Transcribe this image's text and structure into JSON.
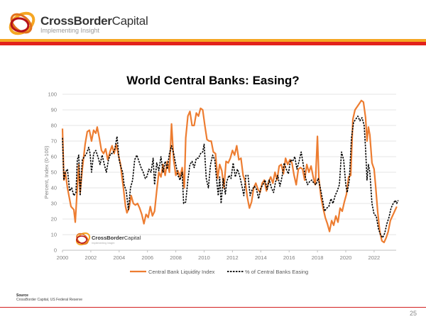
{
  "header": {
    "brand_bold": "CrossBorder",
    "brand_light": "Capital",
    "tagline": "Implementing Insight",
    "colors": {
      "orange": "#f5a623",
      "red": "#e2211c"
    }
  },
  "slide": {
    "title": "World Central Banks: Easing?",
    "watermark_brand_bold": "CrossBorder",
    "watermark_brand_light": "Capital",
    "watermark_tagline": "Implementing Insight",
    "source_label": "Source",
    "source_text": "CrossBorder Capital, US Federal Reserve",
    "page_number": "25"
  },
  "chart_data": {
    "type": "line",
    "title": "World Central Banks: Easing?",
    "xlabel": "",
    "ylabel": "Percent, Index (0-100)",
    "xlim": [
      2000,
      2023.8
    ],
    "ylim": [
      0,
      100
    ],
    "grid": true,
    "legend_position": "bottom",
    "x_ticks": [
      "2000",
      "2002",
      "2004",
      "2006",
      "2008",
      "2010",
      "2012",
      "2014",
      "2016",
      "2018",
      "2020",
      "2022"
    ],
    "y_ticks": [
      "0",
      "10",
      "20",
      "30",
      "40",
      "50",
      "60",
      "70",
      "80",
      "90",
      "100"
    ],
    "series": [
      {
        "name": "Central Bank Liquidity Index",
        "color": "#ed7d31",
        "style": "solid",
        "x": [
          2000.0,
          2000.1,
          2000.2,
          2000.35,
          2000.6,
          2000.8,
          2000.9,
          2001.05,
          2001.15,
          2001.25,
          2001.4,
          2001.6,
          2001.75,
          2001.9,
          2002.05,
          2002.2,
          2002.35,
          2002.45,
          2002.6,
          2002.75,
          2002.9,
          2003.05,
          2003.2,
          2003.35,
          2003.5,
          2003.65,
          2003.8,
          2003.95,
          2004.1,
          2004.2,
          2004.3,
          2004.45,
          2004.55,
          2004.7,
          2004.85,
          2005.0,
          2005.15,
          2005.3,
          2005.45,
          2005.6,
          2005.75,
          2005.9,
          2006.05,
          2006.2,
          2006.35,
          2006.5,
          2006.65,
          2006.8,
          2006.95,
          2007.1,
          2007.25,
          2007.4,
          2007.55,
          2007.7,
          2007.85,
          2008.0,
          2008.15,
          2008.3,
          2008.45,
          2008.6,
          2008.7,
          2008.85,
          2009.0,
          2009.15,
          2009.3,
          2009.45,
          2009.6,
          2009.75,
          2009.9,
          2010.05,
          2010.2,
          2010.35,
          2010.5,
          2010.65,
          2010.8,
          2010.95,
          2011.1,
          2011.25,
          2011.4,
          2011.55,
          2011.7,
          2011.85,
          2012.0,
          2012.15,
          2012.3,
          2012.45,
          2012.6,
          2012.75,
          2012.9,
          2013.05,
          2013.2,
          2013.35,
          2013.5,
          2013.65,
          2013.8,
          2013.95,
          2014.1,
          2014.25,
          2014.4,
          2014.55,
          2014.7,
          2014.85,
          2015.0,
          2015.15,
          2015.3,
          2015.45,
          2015.6,
          2015.75,
          2015.9,
          2016.05,
          2016.2,
          2016.35,
          2016.5,
          2016.65,
          2016.8,
          2016.95,
          2017.1,
          2017.25,
          2017.4,
          2017.55,
          2017.7,
          2017.85,
          2018.0,
          2018.1,
          2018.25,
          2018.4,
          2018.55,
          2018.7,
          2018.85,
          2019.0,
          2019.15,
          2019.3,
          2019.45,
          2019.6,
          2019.75,
          2019.9,
          2020.05,
          2020.2,
          2020.35,
          2020.5,
          2020.65,
          2020.8,
          2020.95,
          2021.1,
          2021.25,
          2021.4,
          2021.5,
          2021.6,
          2021.7,
          2021.85,
          2022.0,
          2022.1,
          2022.25,
          2022.4,
          2022.55,
          2022.7,
          2022.85,
          2023.0,
          2023.15,
          2023.3,
          2023.45,
          2023.6
        ],
        "values": [
          78,
          45,
          50,
          40,
          28,
          26,
          18,
          40,
          55,
          37,
          52,
          68,
          76,
          77,
          70,
          77,
          75,
          79,
          72,
          64,
          62,
          65,
          58,
          63,
          67,
          62,
          68,
          61,
          55,
          47,
          40,
          28,
          24,
          27,
          35,
          30,
          29,
          30,
          27,
          23,
          17,
          23,
          21,
          28,
          22,
          25,
          38,
          50,
          47,
          55,
          48,
          57,
          50,
          81,
          58,
          48,
          51,
          47,
          53,
          40,
          72,
          86,
          89,
          80,
          80,
          88,
          86,
          91,
          90,
          80,
          71,
          70,
          70,
          63,
          62,
          46,
          55,
          51,
          40,
          57,
          56,
          59,
          64,
          61,
          67,
          58,
          59,
          48,
          44,
          34,
          27,
          31,
          40,
          43,
          39,
          37,
          43,
          45,
          38,
          44,
          47,
          43,
          50,
          45,
          54,
          55,
          49,
          59,
          55,
          58,
          56,
          48,
          42,
          52,
          53,
          52,
          45,
          55,
          50,
          54,
          47,
          42,
          73,
          46,
          34,
          27,
          21,
          17,
          12,
          19,
          16,
          22,
          18,
          27,
          25,
          31,
          36,
          47,
          48,
          84,
          90,
          92,
          94,
          96,
          95,
          85,
          70,
          79,
          74,
          56,
          52,
          42,
          25,
          12,
          6,
          5,
          8,
          12,
          19,
          22,
          25,
          28
        ]
      },
      {
        "name": "% of Central Banks Easing",
        "color": "#000000",
        "style": "dashed",
        "x": [
          2000.0,
          2000.1,
          2000.2,
          2000.35,
          2000.5,
          2000.65,
          2000.8,
          2000.95,
          2001.05,
          2001.15,
          2001.25,
          2001.4,
          2001.55,
          2001.7,
          2001.85,
          2001.95,
          2002.05,
          2002.2,
          2002.35,
          2002.5,
          2002.65,
          2002.8,
          2002.95,
          2003.1,
          2003.25,
          2003.4,
          2003.55,
          2003.7,
          2003.85,
          2004.0,
          2004.1,
          2004.25,
          2004.35,
          2004.5,
          2004.65,
          2004.8,
          2004.95,
          2005.1,
          2005.25,
          2005.4,
          2005.55,
          2005.7,
          2005.85,
          2005.95,
          2006.1,
          2006.25,
          2006.4,
          2006.5,
          2006.65,
          2006.8,
          2006.95,
          2007.1,
          2007.25,
          2007.4,
          2007.55,
          2007.7,
          2007.85,
          2008.0,
          2008.15,
          2008.3,
          2008.45,
          2008.55,
          2008.7,
          2008.85,
          2009.0,
          2009.15,
          2009.3,
          2009.45,
          2009.6,
          2009.75,
          2009.9,
          2010.0,
          2010.15,
          2010.3,
          2010.45,
          2010.6,
          2010.75,
          2010.85,
          2011.0,
          2011.1,
          2011.2,
          2011.35,
          2011.5,
          2011.6,
          2011.75,
          2011.9,
          2012.05,
          2012.2,
          2012.35,
          2012.5,
          2012.65,
          2012.8,
          2012.95,
          2013.1,
          2013.25,
          2013.4,
          2013.55,
          2013.7,
          2013.85,
          2014.0,
          2014.15,
          2014.3,
          2014.45,
          2014.6,
          2014.75,
          2014.9,
          2015.05,
          2015.2,
          2015.35,
          2015.5,
          2015.65,
          2015.8,
          2015.95,
          2016.1,
          2016.25,
          2016.4,
          2016.55,
          2016.7,
          2016.85,
          2017.0,
          2017.15,
          2017.3,
          2017.45,
          2017.6,
          2017.75,
          2017.9,
          2018.05,
          2018.2,
          2018.35,
          2018.5,
          2018.65,
          2018.8,
          2018.95,
          2019.1,
          2019.25,
          2019.4,
          2019.55,
          2019.7,
          2019.85,
          2020.0,
          2020.1,
          2020.25,
          2020.4,
          2020.55,
          2020.7,
          2020.85,
          2021.0,
          2021.15,
          2021.3,
          2021.4,
          2021.5,
          2021.6,
          2021.7,
          2021.85,
          2022.0,
          2022.15,
          2022.3,
          2022.45,
          2022.6,
          2022.75,
          2022.9,
          2023.05,
          2023.2,
          2023.35,
          2023.5,
          2023.6,
          2023.7
        ],
        "values": [
          72,
          45,
          50,
          52,
          38,
          40,
          35,
          37,
          58,
          61,
          35,
          58,
          60,
          62,
          66,
          62,
          50,
          62,
          64,
          60,
          55,
          61,
          55,
          50,
          58,
          62,
          62,
          65,
          73,
          58,
          54,
          50,
          42,
          38,
          26,
          40,
          45,
          58,
          61,
          57,
          53,
          50,
          46,
          47,
          52,
          50,
          59,
          42,
          56,
          51,
          60,
          50,
          57,
          52,
          62,
          67,
          62,
          55,
          48,
          45,
          50,
          30,
          31,
          45,
          55,
          57,
          53,
          59,
          59,
          62,
          63,
          68,
          46,
          40,
          55,
          61,
          58,
          48,
          35,
          47,
          30,
          46,
          36,
          44,
          48,
          46,
          56,
          47,
          52,
          48,
          42,
          35,
          48,
          48,
          35,
          39,
          41,
          39,
          33,
          40,
          42,
          45,
          39,
          45,
          40,
          37,
          44,
          48,
          41,
          47,
          56,
          52,
          49,
          58,
          57,
          60,
          52,
          57,
          63,
          55,
          47,
          42,
          44,
          45,
          43,
          42,
          46,
          40,
          33,
          25,
          27,
          28,
          33,
          30,
          35,
          38,
          42,
          63,
          58,
          42,
          37,
          45,
          72,
          82,
          84,
          86,
          83,
          85,
          80,
          65,
          45,
          55,
          50,
          30,
          23,
          22,
          14,
          10,
          8,
          11,
          17,
          21,
          27,
          30,
          32,
          30,
          32
        ]
      }
    ]
  }
}
